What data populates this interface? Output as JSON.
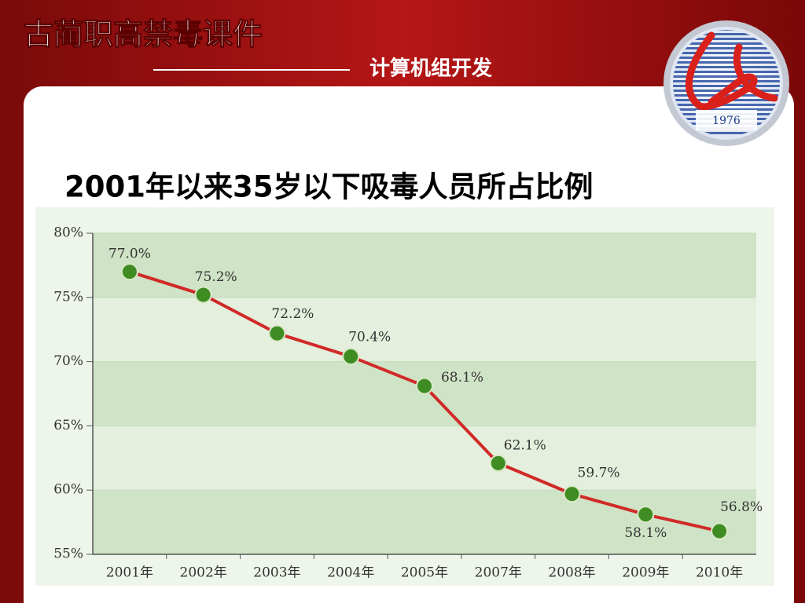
{
  "header": {
    "title": "古蔺职高禁毒课件",
    "subtitle": "计算机组开发",
    "logo_year": "1976"
  },
  "chart_data": {
    "type": "line",
    "title": "2001年以来35岁以下吸毒人员所占比例",
    "categories": [
      "2001年",
      "2002年",
      "2003年",
      "2004年",
      "2005年",
      "2007年",
      "2008年",
      "2009年",
      "2010年"
    ],
    "values": [
      77.0,
      75.2,
      72.2,
      70.4,
      68.1,
      62.1,
      59.7,
      58.1,
      56.8
    ],
    "value_labels": [
      "77.0%",
      "75.2%",
      "72.2%",
      "70.4%",
      "68.1%",
      "62.1%",
      "59.7%",
      "58.1%",
      "56.8%"
    ],
    "ylim": [
      55,
      80
    ],
    "yticks": [
      {
        "value": 55,
        "label": "55%"
      },
      {
        "value": 60,
        "label": "60%"
      },
      {
        "value": 65,
        "label": "65%"
      },
      {
        "value": 70,
        "label": "70%"
      },
      {
        "value": 75,
        "label": "75%"
      },
      {
        "value": 80,
        "label": "80%"
      }
    ],
    "grid": true,
    "color": "#d02a28",
    "marker_color": "#3f8d22"
  }
}
